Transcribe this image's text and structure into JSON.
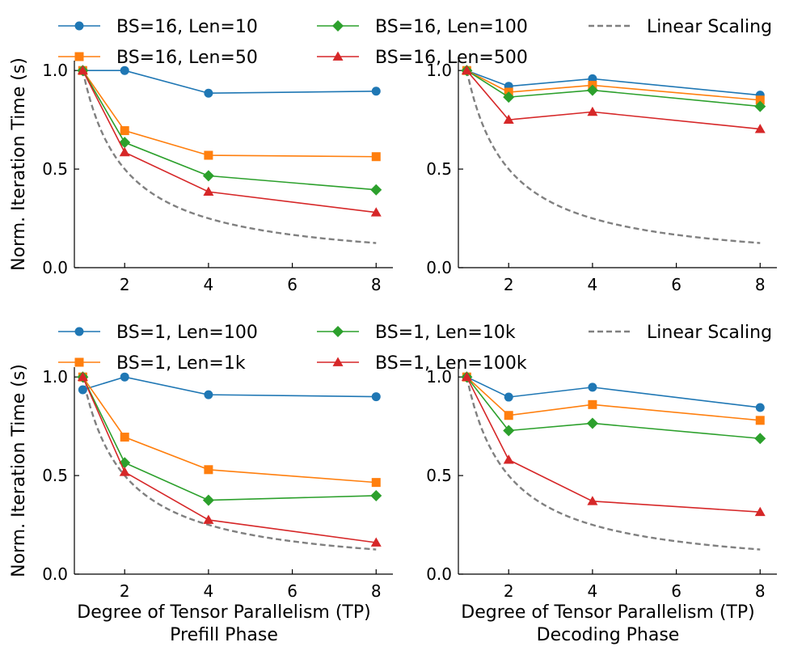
{
  "chart_data": [
    {
      "type": "line",
      "row": "top",
      "x": [
        1,
        2,
        4,
        8
      ],
      "xlim": [
        0.8,
        8.4
      ],
      "ylim": [
        0,
        1.05
      ],
      "xticks": [
        2,
        4,
        6,
        8
      ],
      "yticks": [
        0.0,
        0.5,
        1.0
      ],
      "xlabel": "",
      "ylabel": "Norm. Iteration Time (s)",
      "series": [
        {
          "name": "BS=16, Len=10",
          "color": "#1f77b4",
          "marker": "circle",
          "values": [
            1.0,
            1.0,
            0.885,
            0.895
          ]
        },
        {
          "name": "BS=16, Len=50",
          "color": "#ff7f0e",
          "marker": "square",
          "values": [
            1.0,
            0.695,
            0.57,
            0.563
          ]
        },
        {
          "name": "BS=16, Len=100",
          "color": "#2ca02c",
          "marker": "diamond",
          "values": [
            1.0,
            0.635,
            0.466,
            0.395
          ]
        },
        {
          "name": "BS=16, Len=500",
          "color": "#d62728",
          "marker": "triangle",
          "values": [
            1.0,
            0.585,
            0.385,
            0.28
          ]
        }
      ],
      "linear_scaling": {
        "name": "Linear Scaling",
        "color": "#808080"
      }
    },
    {
      "type": "line",
      "row": "top",
      "x": [
        1,
        2,
        4,
        8
      ],
      "xlim": [
        0.8,
        8.4
      ],
      "ylim": [
        0,
        1.05
      ],
      "xticks": [
        2,
        4,
        6,
        8
      ],
      "yticks": [
        0.0,
        0.5,
        1.0
      ],
      "xlabel": "",
      "ylabel": "",
      "series": [
        {
          "name": "BS=16, Len=10",
          "color": "#1f77b4",
          "marker": "circle",
          "values": [
            1.0,
            0.92,
            0.958,
            0.875
          ]
        },
        {
          "name": "BS=16, Len=50",
          "color": "#ff7f0e",
          "marker": "square",
          "values": [
            1.0,
            0.89,
            0.925,
            0.85
          ]
        },
        {
          "name": "BS=16, Len=100",
          "color": "#2ca02c",
          "marker": "diamond",
          "values": [
            1.0,
            0.865,
            0.9,
            0.818
          ]
        },
        {
          "name": "BS=16, Len=500",
          "color": "#d62728",
          "marker": "triangle",
          "values": [
            1.0,
            0.75,
            0.79,
            0.703
          ]
        }
      ],
      "linear_scaling": {
        "name": "Linear Scaling",
        "color": "#808080"
      }
    },
    {
      "type": "line",
      "row": "bottom",
      "x": [
        1,
        2,
        4,
        8
      ],
      "xlim": [
        0.8,
        8.4
      ],
      "ylim": [
        0,
        1.05
      ],
      "xticks": [
        2,
        4,
        6,
        8
      ],
      "yticks": [
        0.0,
        0.5,
        1.0
      ],
      "xlabel": "Degree of Tensor Parallelism (TP)",
      "subtitle": "Prefill Phase",
      "ylabel": "Norm. Iteration Time (s)",
      "series": [
        {
          "name": "BS=1, Len=100",
          "color": "#1f77b4",
          "marker": "circle",
          "values": [
            0.935,
            1.0,
            0.91,
            0.9
          ]
        },
        {
          "name": "BS=1, Len=1k",
          "color": "#ff7f0e",
          "marker": "square",
          "values": [
            1.0,
            0.695,
            0.53,
            0.465
          ]
        },
        {
          "name": "BS=1, Len=10k",
          "color": "#2ca02c",
          "marker": "diamond",
          "values": [
            1.0,
            0.565,
            0.375,
            0.398
          ]
        },
        {
          "name": "BS=1, Len=100k",
          "color": "#d62728",
          "marker": "triangle",
          "values": [
            1.0,
            0.518,
            0.275,
            0.16
          ]
        }
      ],
      "linear_scaling": {
        "name": "Linear Scaling",
        "color": "#808080"
      }
    },
    {
      "type": "line",
      "row": "bottom",
      "x": [
        1,
        2,
        4,
        8
      ],
      "xlim": [
        0.8,
        8.4
      ],
      "ylim": [
        0,
        1.05
      ],
      "xticks": [
        2,
        4,
        6,
        8
      ],
      "yticks": [
        0.0,
        0.5,
        1.0
      ],
      "xlabel": "Degree of Tensor Parallelism (TP)",
      "subtitle": "Decoding Phase",
      "ylabel": "",
      "series": [
        {
          "name": "BS=1, Len=100",
          "color": "#1f77b4",
          "marker": "circle",
          "values": [
            1.0,
            0.898,
            0.948,
            0.845
          ]
        },
        {
          "name": "BS=1, Len=1k",
          "color": "#ff7f0e",
          "marker": "square",
          "values": [
            1.0,
            0.805,
            0.86,
            0.78
          ]
        },
        {
          "name": "BS=1, Len=10k",
          "color": "#2ca02c",
          "marker": "diamond",
          "values": [
            1.0,
            0.728,
            0.765,
            0.688
          ]
        },
        {
          "name": "BS=1, Len=100k",
          "color": "#d62728",
          "marker": "triangle",
          "values": [
            1.0,
            0.58,
            0.37,
            0.315
          ]
        }
      ],
      "linear_scaling": {
        "name": "Linear Scaling",
        "color": "#808080"
      }
    }
  ],
  "legends": [
    {
      "row": "top",
      "entries": [
        {
          "label": "BS=16, Len=10",
          "color": "#1f77b4",
          "marker": "circle"
        },
        {
          "label": "BS=16, Len=100",
          "color": "#2ca02c",
          "marker": "diamond"
        },
        {
          "label": "Linear Scaling",
          "color": "#808080",
          "marker": "dashed"
        },
        {
          "label": "BS=16, Len=50",
          "color": "#ff7f0e",
          "marker": "square"
        },
        {
          "label": "BS=16, Len=500",
          "color": "#d62728",
          "marker": "triangle"
        }
      ]
    },
    {
      "row": "bottom",
      "entries": [
        {
          "label": "BS=1, Len=100",
          "color": "#1f77b4",
          "marker": "circle"
        },
        {
          "label": "BS=1, Len=10k",
          "color": "#2ca02c",
          "marker": "diamond"
        },
        {
          "label": "Linear Scaling",
          "color": "#808080",
          "marker": "dashed"
        },
        {
          "label": "BS=1, Len=1k",
          "color": "#ff7f0e",
          "marker": "square"
        },
        {
          "label": "BS=1, Len=100k",
          "color": "#d62728",
          "marker": "triangle"
        }
      ]
    }
  ]
}
